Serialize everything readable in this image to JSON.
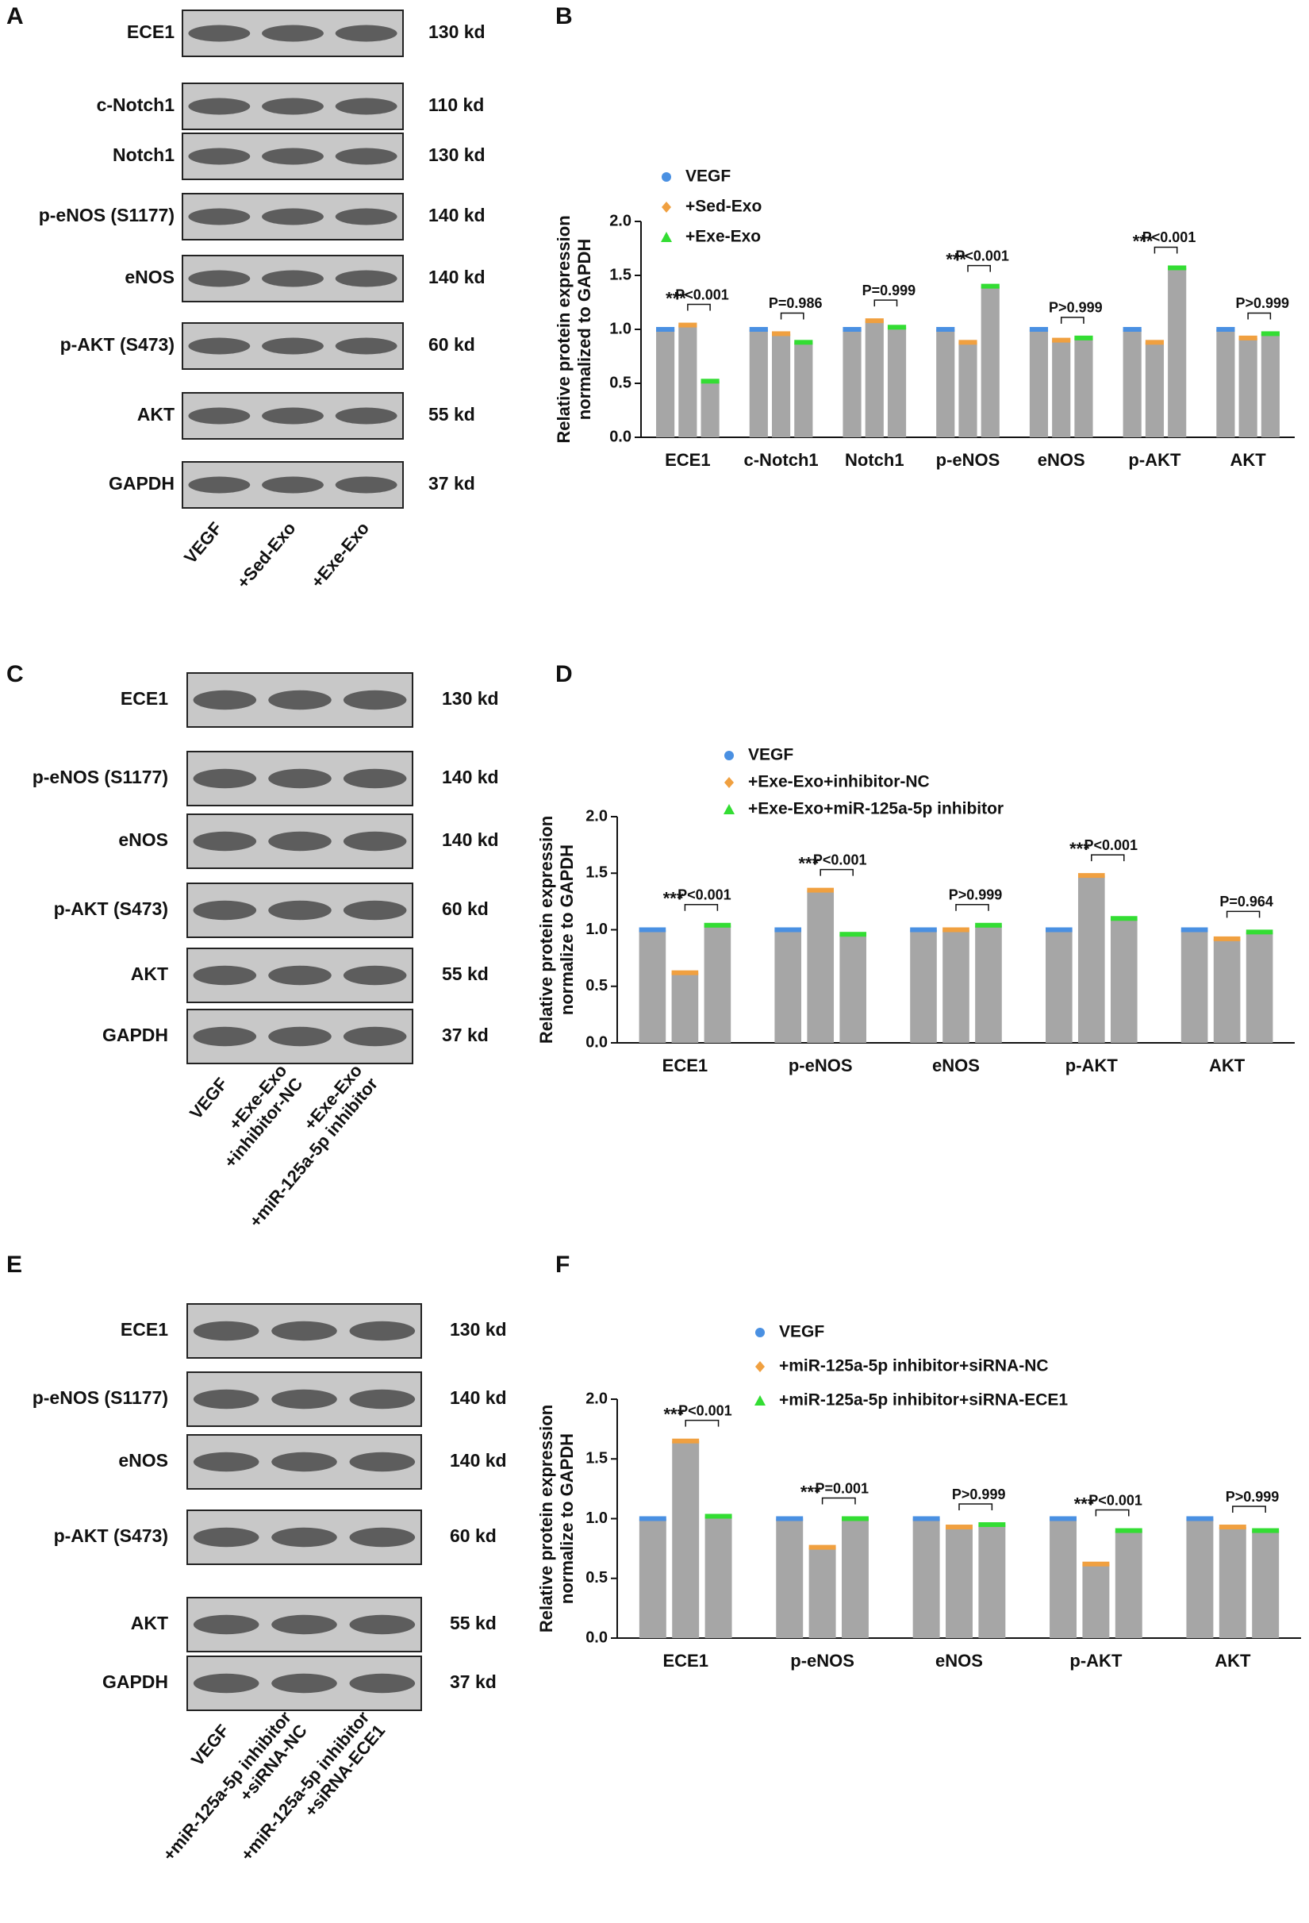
{
  "blots": [
    {
      "panel": "A",
      "rows": [
        {
          "protein": "ECE1",
          "size": "130 kd"
        },
        {
          "protein": "c-Notch1",
          "size": "110 kd"
        },
        {
          "protein": "Notch1",
          "size": "130 kd"
        },
        {
          "protein": "p-eNOS (S1177)",
          "size": "140 kd"
        },
        {
          "protein": "eNOS",
          "size": "140 kd"
        },
        {
          "protein": "p-AKT (S473)",
          "size": "60 kd"
        },
        {
          "protein": "AKT",
          "size": "55 kd"
        },
        {
          "protein": "GAPDH",
          "size": "37 kd"
        }
      ],
      "lanes": [
        "VEGF",
        "+Sed-Exo",
        "+Exe-Exo"
      ]
    },
    {
      "panel": "C",
      "rows": [
        {
          "protein": "ECE1",
          "size": "130 kd"
        },
        {
          "protein": "p-eNOS (S1177)",
          "size": "140 kd"
        },
        {
          "protein": "eNOS",
          "size": "140 kd"
        },
        {
          "protein": "p-AKT (S473)",
          "size": "60 kd"
        },
        {
          "protein": "AKT",
          "size": "55 kd"
        },
        {
          "protein": "GAPDH",
          "size": "37 kd"
        }
      ],
      "lanes": [
        "VEGF",
        [
          "+Exe-Exo",
          "+inhibitor-NC"
        ],
        [
          "+Exe-Exo",
          "+miR-125a-5p inhibitor"
        ]
      ]
    },
    {
      "panel": "E",
      "rows": [
        {
          "protein": "ECE1",
          "size": "130 kd"
        },
        {
          "protein": "p-eNOS (S1177)",
          "size": "140 kd"
        },
        {
          "protein": "eNOS",
          "size": "140 kd"
        },
        {
          "protein": "p-AKT (S473)",
          "size": "60 kd"
        },
        {
          "protein": "AKT",
          "size": "55 kd"
        },
        {
          "protein": "GAPDH",
          "size": "37 kd"
        }
      ],
      "lanes": [
        "VEGF",
        [
          "+miR-125a-5p inhibitor",
          "+siRNA-NC"
        ],
        [
          "+miR-125a-5p inhibitor",
          "+siRNA-ECE1"
        ]
      ]
    }
  ],
  "chart_data": [
    {
      "type": "bar",
      "panel": "B",
      "ylabel": [
        "Relative protein expression",
        "normalized to GAPDH"
      ],
      "categories": [
        "ECE1",
        "c-Notch1",
        "Notch1",
        "p-eNOS",
        "eNOS",
        "p-AKT",
        "AKT"
      ],
      "bar_color": "#a6a6a6",
      "series": [
        {
          "name": "VEGF",
          "color": "#4a90e2",
          "values": [
            1.0,
            1.0,
            1.0,
            1.0,
            1.0,
            1.0,
            1.0
          ]
        },
        {
          "name": "+Sed-Exo",
          "color": "#f0a040",
          "values": [
            1.04,
            0.96,
            1.08,
            0.88,
            0.9,
            0.88,
            0.92
          ]
        },
        {
          "name": "+Exe-Exo",
          "color": "#33dd33",
          "values": [
            0.52,
            0.88,
            1.02,
            1.4,
            0.92,
            1.57,
            0.96
          ]
        }
      ],
      "significance": [
        "***",
        null,
        null,
        "***",
        null,
        "***",
        null
      ],
      "p_values": [
        "P<0.001",
        "P=0.986",
        "P=0.999",
        "P<0.001",
        "P>0.999",
        "P<0.001",
        "P>0.999"
      ],
      "ylim": [
        0,
        2.0
      ],
      "yticks": [
        {
          "value": 0,
          "label": "0.0"
        },
        {
          "value": 0.5,
          "label": "0.5"
        },
        {
          "value": 1,
          "label": "1.0"
        },
        {
          "value": 1.5,
          "label": "1.5"
        },
        {
          "value": 2,
          "label": "2.0"
        }
      ]
    },
    {
      "type": "bar",
      "panel": "D",
      "ylabel": [
        "Relative protein expression",
        "normalize to GAPDH"
      ],
      "categories": [
        "ECE1",
        "p-eNOS",
        "eNOS",
        "p-AKT",
        "AKT"
      ],
      "bar_color": "#a6a6a6",
      "series": [
        {
          "name": "VEGF",
          "color": "#4a90e2",
          "values": [
            1.0,
            1.0,
            1.0,
            1.0,
            1.0
          ]
        },
        {
          "name": "+Exe-Exo+inhibitor-NC",
          "color": "#f0a040",
          "values": [
            0.62,
            1.35,
            1.0,
            1.48,
            0.92
          ]
        },
        {
          "name": "+Exe-Exo+miR-125a-5p inhibitor",
          "color": "#33dd33",
          "values": [
            1.04,
            0.96,
            1.04,
            1.1,
            0.98
          ]
        }
      ],
      "significance": [
        "***",
        "***",
        null,
        "***",
        null
      ],
      "p_values": [
        "P<0.001",
        "P<0.001",
        "P>0.999",
        "P<0.001",
        "P=0.964"
      ],
      "ylim": [
        0,
        2.0
      ],
      "yticks": [
        {
          "value": 0,
          "label": "0.0"
        },
        {
          "value": 0.5,
          "label": "0.5"
        },
        {
          "value": 1,
          "label": "1.0"
        },
        {
          "value": 1.5,
          "label": "1.5"
        },
        {
          "value": 2,
          "label": "2.0"
        }
      ]
    },
    {
      "type": "bar",
      "panel": "F",
      "ylabel": [
        "Relative protein expression",
        "normalize to GAPDH"
      ],
      "categories": [
        "ECE1",
        "p-eNOS",
        "eNOS",
        "p-AKT",
        "AKT"
      ],
      "bar_color": "#a6a6a6",
      "series": [
        {
          "name": "VEGF",
          "color": "#4a90e2",
          "values": [
            1.0,
            1.0,
            1.0,
            1.0,
            1.0
          ]
        },
        {
          "name": "+miR-125a-5p inhibitor+siRNA-NC",
          "color": "#f0a040",
          "values": [
            1.65,
            0.76,
            0.93,
            0.62,
            0.93
          ]
        },
        {
          "name": "+miR-125a-5p inhibitor+siRNA-ECE1",
          "color": "#33dd33",
          "values": [
            1.02,
            1.0,
            0.95,
            0.9,
            0.9
          ]
        }
      ],
      "significance": [
        "***",
        "***",
        null,
        "***",
        null
      ],
      "p_values": [
        "P<0.001",
        "P=0.001",
        "P>0.999",
        "P<0.001",
        "P>0.999"
      ],
      "ylim": [
        0,
        2.0
      ],
      "yticks": [
        {
          "value": 0,
          "label": "0.0"
        },
        {
          "value": 0.5,
          "label": "0.5"
        },
        {
          "value": 1,
          "label": "1.0"
        },
        {
          "value": 1.5,
          "label": "1.5"
        },
        {
          "value": 2,
          "label": "2.0"
        }
      ]
    }
  ]
}
